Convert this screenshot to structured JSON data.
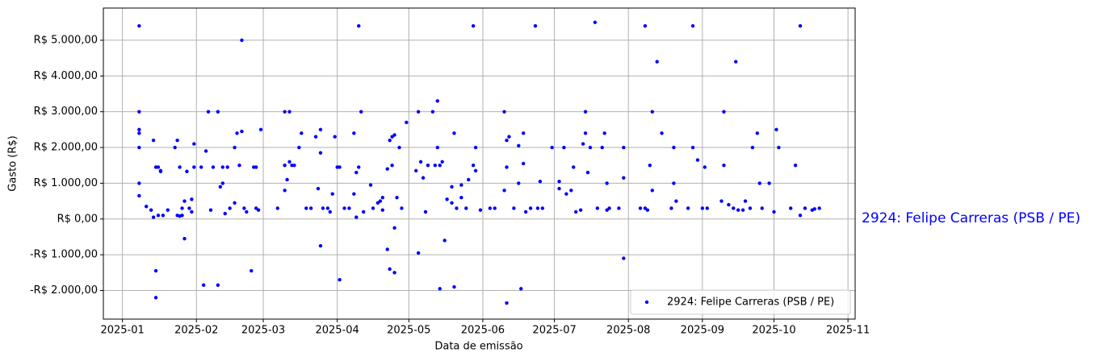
{
  "chart_data": {
    "type": "scatter",
    "xlabel": "Data de emissão",
    "ylabel": "Gasto (R$)",
    "annotation": "2924: Felipe Carreras (PSB / PE)",
    "legend": "lower right",
    "grid": true,
    "xlim": [
      "2024-12-24",
      "2025-11-04"
    ],
    "ylim": [
      -2800,
      5900
    ],
    "xticks": [
      {
        "value": "2025-01-01",
        "label": "2025-01"
      },
      {
        "value": "2025-02-01",
        "label": "2025-02"
      },
      {
        "value": "2025-03-01",
        "label": "2025-03"
      },
      {
        "value": "2025-04-01",
        "label": "2025-04"
      },
      {
        "value": "2025-05-01",
        "label": "2025-05"
      },
      {
        "value": "2025-06-01",
        "label": "2025-06"
      },
      {
        "value": "2025-07-01",
        "label": "2025-07"
      },
      {
        "value": "2025-08-01",
        "label": "2025-08"
      },
      {
        "value": "2025-09-01",
        "label": "2025-09"
      },
      {
        "value": "2025-10-01",
        "label": "2025-10"
      },
      {
        "value": "2025-11-01",
        "label": "2025-11"
      }
    ],
    "yticks": [
      {
        "value": -2000,
        "label": "-R$ 2.000,00"
      },
      {
        "value": -1000,
        "label": "-R$ 1.000,00"
      },
      {
        "value": 0,
        "label": "R$ 0,00"
      },
      {
        "value": 1000,
        "label": "R$ 1.000,00"
      },
      {
        "value": 2000,
        "label": "R$ 2.000,00"
      },
      {
        "value": 3000,
        "label": "R$ 3.000,00"
      },
      {
        "value": 4000,
        "label": "R$ 4.000,00"
      },
      {
        "value": 5000,
        "label": "R$ 5.000,00"
      }
    ],
    "x": [
      "2025-01-08",
      "2025-01-08",
      "2025-01-08",
      "2025-01-08",
      "2025-01-08",
      "2025-01-08",
      "2025-01-08",
      "2025-01-11",
      "2025-01-13",
      "2025-01-15",
      "2025-01-14",
      "2025-01-15",
      "2025-01-16",
      "2025-01-15",
      "2025-01-14",
      "2025-01-16",
      "2025-01-17",
      "2025-01-17",
      "2025-01-18",
      "2025-01-20",
      "2025-01-23",
      "2025-01-24",
      "2025-01-25",
      "2025-01-25",
      "2025-01-24",
      "2025-01-26",
      "2025-01-26",
      "2025-01-27",
      "2025-01-27",
      "2025-01-28",
      "2025-01-29",
      "2025-01-30",
      "2025-01-30",
      "2025-01-31",
      "2025-01-31",
      "2025-02-03",
      "2025-02-04",
      "2025-02-05",
      "2025-02-06",
      "2025-02-07",
      "2025-02-08",
      "2025-02-10",
      "2025-02-10",
      "2025-02-11",
      "2025-02-12",
      "2025-02-12",
      "2025-02-13",
      "2025-02-14",
      "2025-02-17",
      "2025-02-17",
      "2025-02-18",
      "2025-02-19",
      "2025-02-20",
      "2025-02-20",
      "2025-02-21",
      "2025-02-22",
      "2025-02-24",
      "2025-02-25",
      "2025-02-26",
      "2025-02-26",
      "2025-02-27",
      "2025-02-28",
      "2025-02-15",
      "2025-03-07",
      "2025-03-10",
      "2025-03-10",
      "2025-03-10",
      "2025-03-11",
      "2025-03-12",
      "2025-03-12",
      "2025-03-13",
      "2025-03-14",
      "2025-03-16",
      "2025-03-17",
      "2025-03-19",
      "2025-03-21",
      "2025-03-23",
      "2025-03-24",
      "2025-03-25",
      "2025-03-25",
      "2025-03-25",
      "2025-03-26",
      "2025-03-28",
      "2025-03-29",
      "2025-03-30",
      "2025-03-31",
      "2025-04-01",
      "2025-04-02",
      "2025-04-02",
      "2025-04-04",
      "2025-04-06",
      "2025-04-08",
      "2025-04-08",
      "2025-04-09",
      "2025-04-09",
      "2025-04-10",
      "2025-04-10",
      "2025-04-11",
      "2025-04-12",
      "2025-04-15",
      "2025-04-16",
      "2025-04-18",
      "2025-04-19",
      "2025-04-20",
      "2025-04-22",
      "2025-04-22",
      "2025-04-23",
      "2025-04-23",
      "2025-04-24",
      "2025-04-24",
      "2025-04-25",
      "2025-04-25",
      "2025-04-25",
      "2025-04-26",
      "2025-04-27",
      "2025-04-28",
      "2025-04-30",
      "2025-04-20",
      "2025-05-04",
      "2025-05-05",
      "2025-05-05",
      "2025-05-06",
      "2025-05-07",
      "2025-05-08",
      "2025-05-09",
      "2025-05-11",
      "2025-05-12",
      "2025-05-13",
      "2025-05-13",
      "2025-05-14",
      "2025-05-14",
      "2025-05-15",
      "2025-05-16",
      "2025-05-17",
      "2025-05-19",
      "2025-05-19",
      "2025-05-20",
      "2025-05-20",
      "2025-05-21",
      "2025-05-23",
      "2025-05-23",
      "2025-05-26",
      "2025-05-28",
      "2025-05-28",
      "2025-05-29",
      "2025-05-29",
      "2025-05-31",
      "2025-05-25",
      "2025-06-04",
      "2025-06-06",
      "2025-06-10",
      "2025-06-10",
      "2025-06-11",
      "2025-06-11",
      "2025-06-11",
      "2025-06-12",
      "2025-06-14",
      "2025-06-16",
      "2025-06-16",
      "2025-06-17",
      "2025-06-18",
      "2025-06-18",
      "2025-06-19",
      "2025-06-21",
      "2025-06-23",
      "2025-06-24",
      "2025-06-25",
      "2025-06-26",
      "2025-06-30",
      "2025-07-03",
      "2025-07-03",
      "2025-07-05",
      "2025-07-06",
      "2025-07-08",
      "2025-07-09",
      "2025-07-10",
      "2025-07-13",
      "2025-07-14",
      "2025-07-14",
      "2025-07-15",
      "2025-07-16",
      "2025-07-18",
      "2025-07-19",
      "2025-07-21",
      "2025-07-22",
      "2025-07-23",
      "2025-07-23",
      "2025-07-24",
      "2025-07-28",
      "2025-07-30",
      "2025-07-30",
      "2025-07-30",
      "2025-07-12",
      "2025-08-06",
      "2025-08-08",
      "2025-08-09",
      "2025-08-10",
      "2025-08-11",
      "2025-08-11",
      "2025-08-13",
      "2025-08-15",
      "2025-08-19",
      "2025-08-20",
      "2025-08-20",
      "2025-08-21",
      "2025-08-26",
      "2025-08-28",
      "2025-08-28",
      "2025-08-30",
      "2025-08-08",
      "2025-09-01",
      "2025-09-02",
      "2025-09-03",
      "2025-09-09",
      "2025-09-10",
      "2025-09-10",
      "2025-09-12",
      "2025-09-14",
      "2025-09-15",
      "2025-09-16",
      "2025-09-19",
      "2025-09-21",
      "2025-09-22",
      "2025-09-24",
      "2025-09-25",
      "2025-09-26",
      "2025-09-29",
      "2025-09-18",
      "2025-10-01",
      "2025-10-02",
      "2025-10-03",
      "2025-10-08",
      "2025-10-10",
      "2025-10-12",
      "2025-10-12",
      "2025-10-14",
      "2025-10-17",
      "2025-10-20",
      "2025-10-18"
    ],
    "series": [
      {
        "name": "2924: Felipe Carreras (PSB / PE)",
        "color": "#0000ff",
        "values": [
          650,
          2000,
          5400,
          3000,
          2500,
          2400,
          1000,
          350,
          250,
          -1450,
          2200,
          1450,
          1450,
          -2200,
          50,
          100,
          1350,
          1330,
          100,
          250,
          2000,
          2200,
          1450,
          80,
          100,
          300,
          100,
          500,
          -550,
          1330,
          300,
          550,
          200,
          2100,
          1450,
          1450,
          -1850,
          1900,
          3000,
          250,
          1450,
          3000,
          -1850,
          900,
          1000,
          1450,
          150,
          1450,
          2000,
          450,
          2400,
          1500,
          2450,
          5000,
          300,
          200,
          -1450,
          1450,
          300,
          1450,
          250,
          2500,
          300,
          300,
          1500,
          3000,
          800,
          1100,
          1600,
          3000,
          1500,
          1500,
          2000,
          2400,
          300,
          300,
          2300,
          850,
          2500,
          -750,
          1850,
          300,
          300,
          200,
          700,
          2300,
          1450,
          -1700,
          1450,
          300,
          300,
          700,
          2400,
          1300,
          50,
          5400,
          1450,
          3000,
          200,
          950,
          300,
          450,
          500,
          600,
          1400,
          -850,
          -1400,
          2200,
          2300,
          1500,
          -1500,
          -250,
          2350,
          600,
          2000,
          300,
          2700,
          250,
          1350,
          -950,
          3000,
          1600,
          1150,
          200,
          1500,
          3000,
          1500,
          3300,
          2000,
          1500,
          -1950,
          1600,
          -600,
          550,
          450,
          900,
          2400,
          -1900,
          300,
          950,
          600,
          1100,
          1500,
          5400,
          2000,
          1350,
          250,
          300,
          300,
          300,
          3000,
          800,
          2200,
          1450,
          -2350,
          2300,
          300,
          1000,
          2050,
          -1950,
          2400,
          1550,
          200,
          300,
          5400,
          300,
          1050,
          300,
          2000,
          1050,
          850,
          2000,
          700,
          800,
          1450,
          200,
          2100,
          2400,
          3000,
          1300,
          2000,
          5500,
          300,
          2000,
          2400,
          1000,
          250,
          300,
          300,
          -1100,
          1150,
          2000,
          250,
          300,
          5400,
          250,
          1500,
          3000,
          800,
          4400,
          2400,
          300,
          2000,
          1000,
          500,
          300,
          5400,
          2000,
          1650,
          300,
          300,
          1450,
          300,
          500,
          1500,
          3000,
          400,
          300,
          4400,
          250,
          500,
          300,
          2000,
          2400,
          1000,
          300,
          1000,
          250,
          200,
          2500,
          2000,
          300,
          1500,
          5400,
          100,
          300,
          250,
          300,
          280
        ]
      }
    ]
  }
}
